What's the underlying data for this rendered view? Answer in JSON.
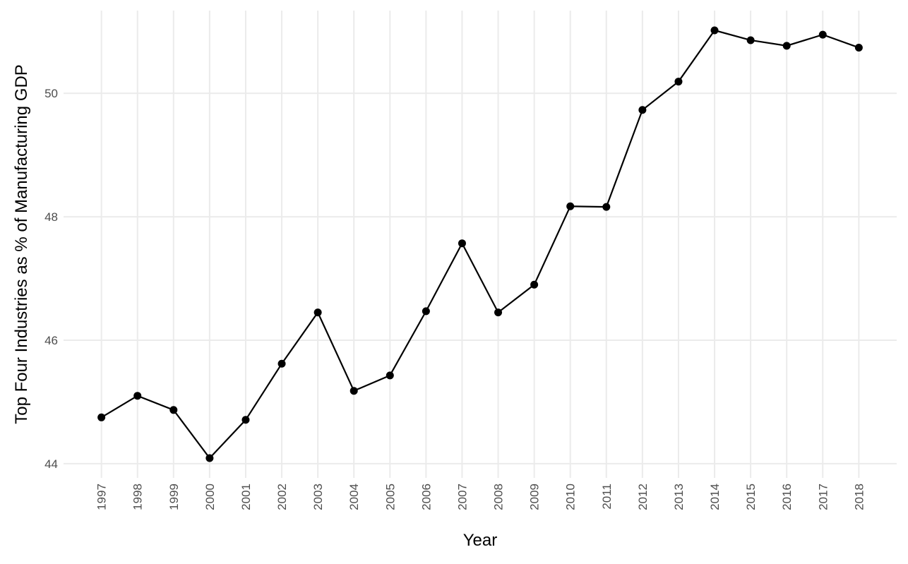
{
  "chart_data": {
    "type": "line",
    "x_label": "Year",
    "y_label": "Top Four Industries as % of Manufacturing GDP",
    "x": [
      1997,
      1998,
      1999,
      2000,
      2001,
      2002,
      2003,
      2004,
      2005,
      2006,
      2007,
      2008,
      2009,
      2010,
      2011,
      2012,
      2013,
      2014,
      2015,
      2016,
      2017,
      2018
    ],
    "series": [
      {
        "color": "#000000",
        "values": [
          44.75,
          45.1,
          44.87,
          44.09,
          44.71,
          45.62,
          46.45,
          45.18,
          45.43,
          46.47,
          47.57,
          46.45,
          46.9,
          48.17,
          48.16,
          49.73,
          50.19,
          51.02,
          50.86,
          50.77,
          50.95,
          50.74
        ]
      }
    ],
    "xlim": [
      1995.95,
      2019.05
    ],
    "xticks": [
      1997,
      1998,
      1999,
      2000,
      2001,
      2002,
      2003,
      2004,
      2005,
      2006,
      2007,
      2008,
      2009,
      2010,
      2011,
      2012,
      2013,
      2014,
      2015,
      2016,
      2017,
      2018
    ],
    "ylim": [
      43.77,
      51.34
    ],
    "yticks": [
      44,
      46,
      48,
      50
    ],
    "grid": true
  }
}
